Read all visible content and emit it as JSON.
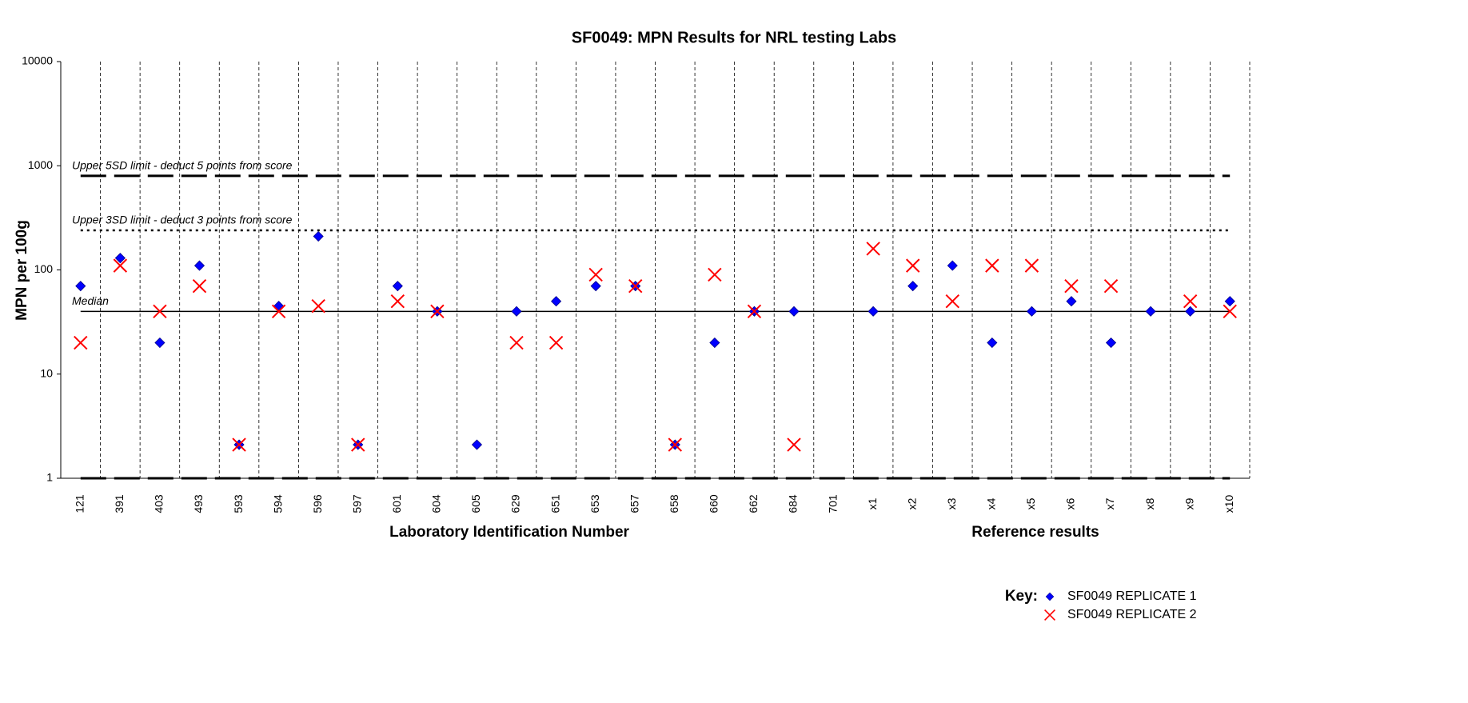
{
  "chart_data": {
    "type": "scatter",
    "title": "SF0049: MPN Results for NRL testing Labs",
    "y_label": "MPN per 100g",
    "x_label": "Laboratory Identification Number",
    "x_label_2": "Reference results",
    "legend_title": "Key:",
    "categories": [
      "121",
      "391",
      "403",
      "493",
      "593",
      "594",
      "596",
      "597",
      "601",
      "604",
      "605",
      "629",
      "651",
      "653",
      "657",
      "658",
      "660",
      "662",
      "684",
      "701",
      "x1",
      "x2",
      "x3",
      "x4",
      "x5",
      "x6",
      "x7",
      "x8",
      "x9",
      "x10"
    ],
    "series": [
      {
        "name": "SF0049 REPLICATE 1",
        "color": "#0000ff",
        "marker": "diamond",
        "values": [
          70,
          130,
          20,
          110,
          2.1,
          45,
          210,
          2.1,
          70,
          40,
          2.1,
          40,
          50,
          70,
          70,
          2.1,
          20,
          40,
          40,
          null,
          40,
          70,
          110,
          20,
          40,
          50,
          20,
          40,
          40,
          50
        ]
      },
      {
        "name": "SF0049 REPLICATE 2",
        "color": "#ff0000",
        "marker": "x",
        "values": [
          20,
          110,
          40,
          70,
          2.1,
          40,
          45,
          2.1,
          50,
          40,
          null,
          20,
          20,
          90,
          70,
          2.1,
          90,
          40,
          2.1,
          null,
          160,
          110,
          50,
          110,
          110,
          70,
          70,
          null,
          50,
          40
        ]
      }
    ],
    "reference_lines": [
      {
        "label": "Upper  5SD  limit - deduct 5 points from score",
        "value": 800,
        "style": "longdash"
      },
      {
        "label": "Upper  3SD limit - deduct 3 points from score",
        "value": 240,
        "style": "dotted"
      },
      {
        "label": "Median",
        "value": 40,
        "style": "solid"
      },
      {
        "value": 1,
        "style": "longdash"
      }
    ],
    "ylim": [
      1,
      10000
    ],
    "yticks": [
      1,
      10,
      100,
      1000,
      10000
    ],
    "log_y": true,
    "grid": true
  }
}
